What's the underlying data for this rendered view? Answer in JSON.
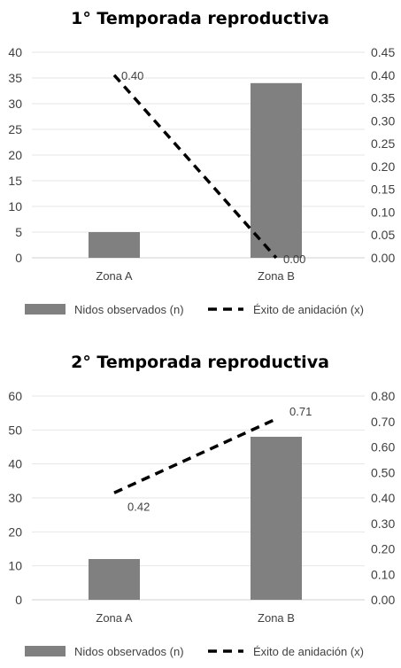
{
  "chart_data": [
    {
      "type": "bar",
      "title": "1° Temporada reproductiva",
      "categories": [
        "Zona A",
        "Zona B"
      ],
      "series": [
        {
          "name": "Nidos observados (n)",
          "type": "bar",
          "axis": "left",
          "color": "#808080",
          "values": [
            5,
            34
          ]
        },
        {
          "name": "Éxito de anidación (x)",
          "type": "line",
          "axis": "right",
          "color": "#000000",
          "style": "dashed",
          "values": [
            0.4,
            0.0
          ],
          "labels": [
            "0.40",
            "0.00"
          ]
        }
      ],
      "ylim_left": [
        0,
        40
      ],
      "yticks_left": [
        "0",
        "5",
        "10",
        "15",
        "20",
        "25",
        "30",
        "35",
        "40"
      ],
      "ylim_right": [
        0,
        0.45
      ],
      "yticks_right": [
        "0.00",
        "0.05",
        "0.10",
        "0.15",
        "0.20",
        "0.25",
        "0.30",
        "0.35",
        "0.40",
        "0.45"
      ],
      "grid": true,
      "legend": "bottom"
    },
    {
      "type": "bar",
      "title": "2° Temporada reproductiva",
      "categories": [
        "Zona A",
        "Zona B"
      ],
      "series": [
        {
          "name": "Nidos observados (n)",
          "type": "bar",
          "axis": "left",
          "color": "#808080",
          "values": [
            12,
            48
          ]
        },
        {
          "name": "Éxito de anidación (x)",
          "type": "line",
          "axis": "right",
          "color": "#000000",
          "style": "dashed",
          "values": [
            0.42,
            0.71
          ],
          "labels": [
            "0.42",
            "0.71"
          ]
        }
      ],
      "ylim_left": [
        0,
        60
      ],
      "yticks_left": [
        "0",
        "10",
        "20",
        "30",
        "40",
        "50",
        "60"
      ],
      "ylim_right": [
        0,
        0.8
      ],
      "yticks_right": [
        "0.00",
        "0.10",
        "0.20",
        "0.30",
        "0.40",
        "0.50",
        "0.60",
        "0.70",
        "0.80"
      ],
      "grid": true,
      "legend": "bottom"
    }
  ]
}
